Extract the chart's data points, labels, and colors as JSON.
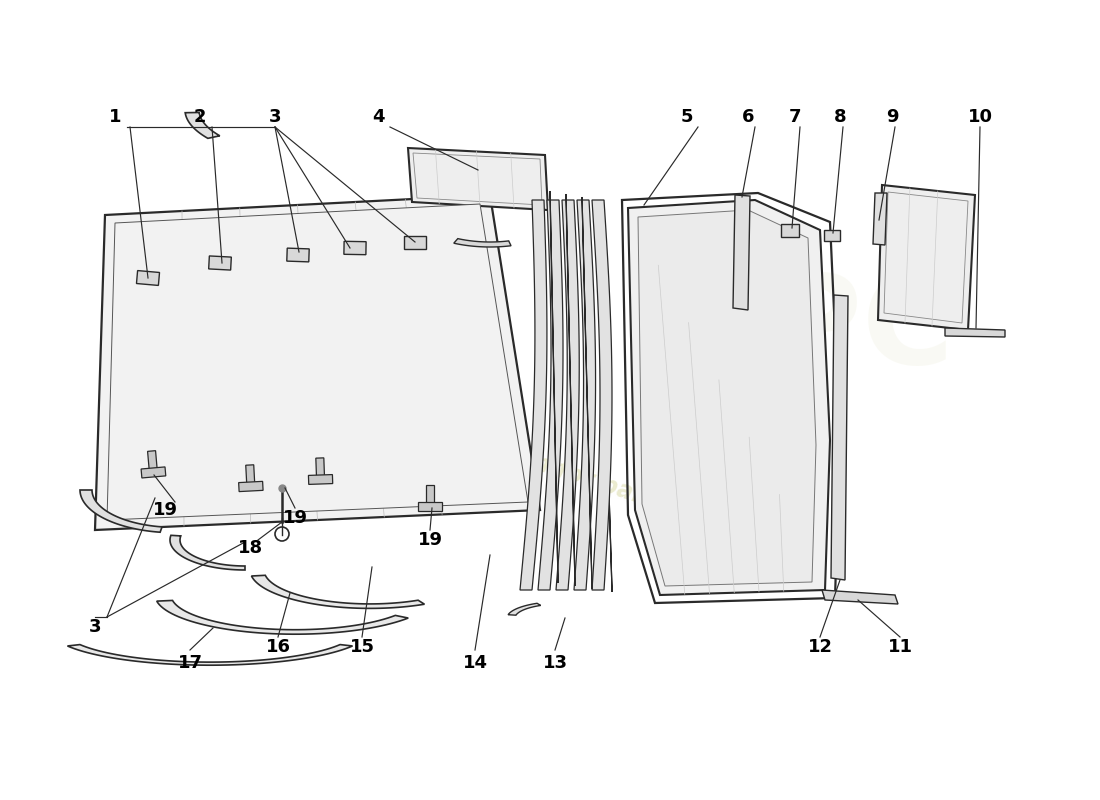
{
  "background_color": "#ffffff",
  "line_color": "#2a2a2a",
  "leader_color": "#2a2a2a",
  "label_color": "#000000",
  "label_fontsize": 13,
  "label_fontweight": "bold",
  "watermark_color1": "#e8e8c8",
  "watermark_color2": "#d8d8b0"
}
